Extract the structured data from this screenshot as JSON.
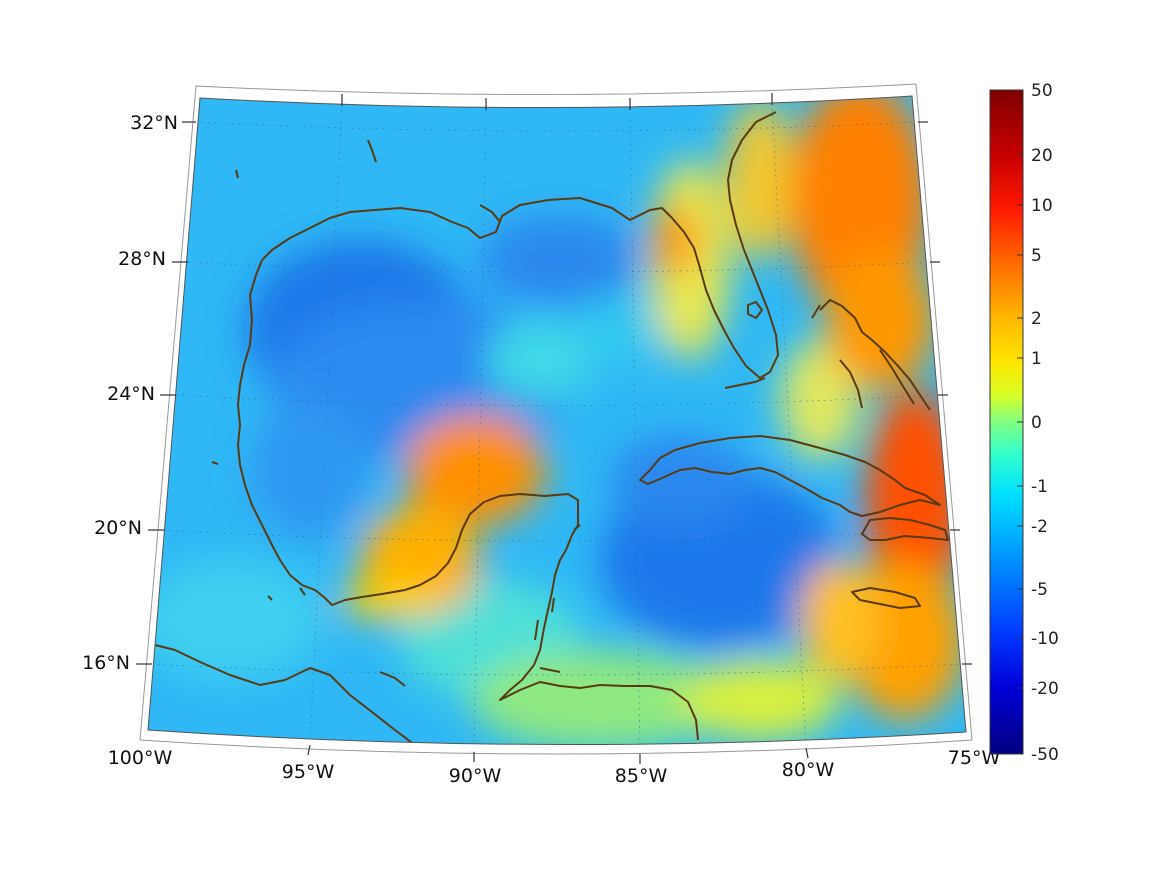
{
  "map": {
    "lat_labels": [
      "32°N",
      "28°N",
      "24°N",
      "20°N",
      "16°N"
    ],
    "lon_labels": [
      "100°W",
      "95°W",
      "90°W",
      "85°W",
      "80°W",
      "75°W"
    ],
    "coastline_color": "#5a3a12",
    "graticule": "dotted"
  },
  "colorbar": {
    "tick_labels": [
      "50",
      "20",
      "10",
      "5",
      "2",
      "1",
      "0",
      "-1",
      "-2",
      "-5",
      "-10",
      "-20",
      "-50"
    ],
    "colormap": "jet",
    "colors": [
      "#7f0000",
      "#e00000",
      "#ff3a00",
      "#ff8a00",
      "#ffd200",
      "#dfff20",
      "#7cff7c",
      "#30ffd0",
      "#00d4ff",
      "#0080ff",
      "#0028ff",
      "#0000c8",
      "#00007f"
    ]
  }
}
